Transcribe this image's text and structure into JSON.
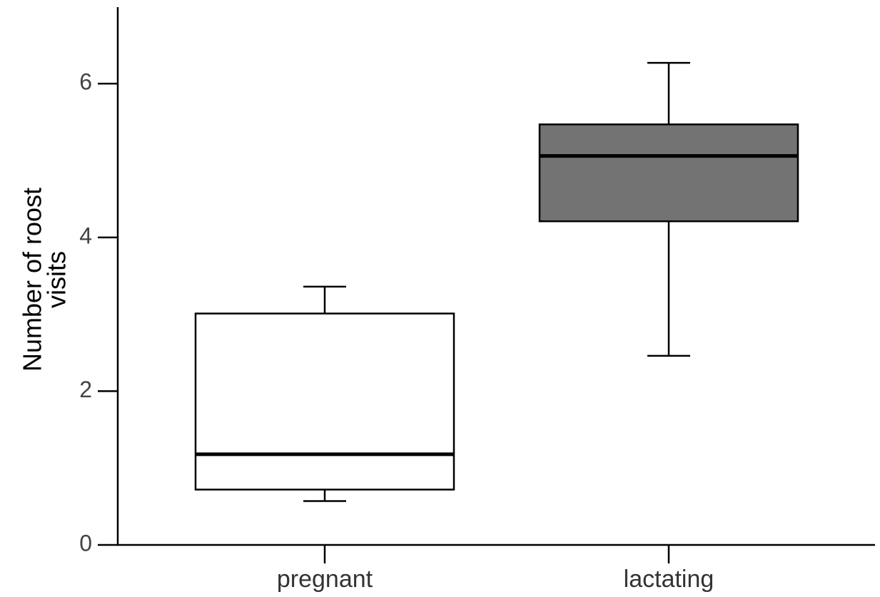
{
  "chart_data": {
    "type": "box",
    "ylabel": [
      "Number of roost",
      "visits"
    ],
    "categories": [
      "pregnant",
      "lactating"
    ],
    "boxes": [
      {
        "whislo": 0.57,
        "q1": 0.72,
        "med": 1.18,
        "q3": 3.01,
        "whishi": 3.36,
        "color": "#ffffff"
      },
      {
        "whislo": 2.46,
        "q1": 4.21,
        "med": 5.06,
        "q3": 5.47,
        "whishi": 6.27,
        "color": "#737373"
      }
    ],
    "ylim": [
      0,
      7
    ],
    "yticks": [
      0,
      2,
      4,
      6
    ],
    "grid": false
  }
}
